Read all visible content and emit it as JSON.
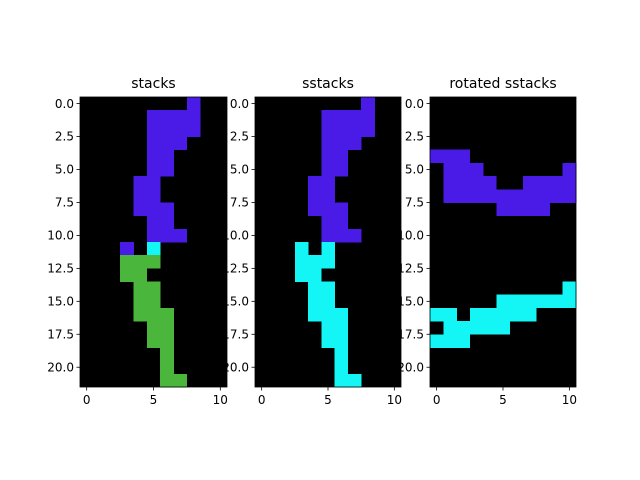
{
  "colors": {
    "background": "#000000",
    "purple": "#4a1be6",
    "cyan": "#14f5f5",
    "green": "#4ab63c"
  },
  "chart_data": [
    {
      "type": "heatmap",
      "title": "stacks",
      "xlim": [
        -0.5,
        10.5
      ],
      "ylim": [
        21.5,
        -0.5
      ],
      "xticks": [
        0,
        5,
        10
      ],
      "yticks": [
        0.0,
        2.5,
        5.0,
        7.5,
        10.0,
        12.5,
        15.0,
        17.5,
        20.0
      ],
      "x_tick_labels": [
        "0",
        "5",
        "10"
      ],
      "y_tick_labels": [
        "0.0",
        "2.5",
        "5.0",
        "7.5",
        "10.0",
        "12.5",
        "15.0",
        "17.5",
        "20.0"
      ],
      "grid": false,
      "runs": [
        {
          "row": 0,
          "x0": 8,
          "x1": 8,
          "color": "purple"
        },
        {
          "row": 1,
          "x0": 5,
          "x1": 8,
          "color": "purple"
        },
        {
          "row": 2,
          "x0": 5,
          "x1": 8,
          "color": "purple"
        },
        {
          "row": 3,
          "x0": 5,
          "x1": 7,
          "color": "purple"
        },
        {
          "row": 4,
          "x0": 5,
          "x1": 6,
          "color": "purple"
        },
        {
          "row": 5,
          "x0": 5,
          "x1": 6,
          "color": "purple"
        },
        {
          "row": 6,
          "x0": 4,
          "x1": 5,
          "color": "purple"
        },
        {
          "row": 7,
          "x0": 4,
          "x1": 5,
          "color": "purple"
        },
        {
          "row": 8,
          "x0": 4,
          "x1": 6,
          "color": "purple"
        },
        {
          "row": 9,
          "x0": 5,
          "x1": 6,
          "color": "purple"
        },
        {
          "row": 10,
          "x0": 5,
          "x1": 7,
          "color": "purple"
        },
        {
          "row": 11,
          "x0": 3,
          "x1": 3,
          "color": "purple"
        },
        {
          "row": 11,
          "x0": 5,
          "x1": 5,
          "color": "cyan"
        },
        {
          "row": 12,
          "x0": 3,
          "x1": 5,
          "color": "green"
        },
        {
          "row": 13,
          "x0": 3,
          "x1": 4,
          "color": "green"
        },
        {
          "row": 14,
          "x0": 4,
          "x1": 5,
          "color": "green"
        },
        {
          "row": 15,
          "x0": 4,
          "x1": 5,
          "color": "green"
        },
        {
          "row": 16,
          "x0": 4,
          "x1": 6,
          "color": "green"
        },
        {
          "row": 17,
          "x0": 5,
          "x1": 6,
          "color": "green"
        },
        {
          "row": 18,
          "x0": 5,
          "x1": 6,
          "color": "green"
        },
        {
          "row": 19,
          "x0": 6,
          "x1": 6,
          "color": "green"
        },
        {
          "row": 20,
          "x0": 6,
          "x1": 6,
          "color": "green"
        },
        {
          "row": 21,
          "x0": 6,
          "x1": 7,
          "color": "green"
        }
      ]
    },
    {
      "type": "heatmap",
      "title": "sstacks",
      "xlim": [
        -0.5,
        10.5
      ],
      "ylim": [
        21.5,
        -0.5
      ],
      "xticks": [
        0,
        5,
        10
      ],
      "yticks": [
        0.0,
        2.5,
        5.0,
        7.5,
        10.0,
        12.5,
        15.0,
        17.5,
        20.0
      ],
      "x_tick_labels": [
        "0",
        "5",
        "10"
      ],
      "y_tick_labels": [
        "0.0",
        "2.5",
        "5.0",
        "7.5",
        "10.0",
        "12.5",
        "15.0",
        "17.5",
        "20.0"
      ],
      "grid": false,
      "runs": [
        {
          "row": 0,
          "x0": 8,
          "x1": 8,
          "color": "purple"
        },
        {
          "row": 1,
          "x0": 5,
          "x1": 8,
          "color": "purple"
        },
        {
          "row": 2,
          "x0": 5,
          "x1": 8,
          "color": "purple"
        },
        {
          "row": 3,
          "x0": 5,
          "x1": 7,
          "color": "purple"
        },
        {
          "row": 4,
          "x0": 5,
          "x1": 6,
          "color": "purple"
        },
        {
          "row": 5,
          "x0": 5,
          "x1": 6,
          "color": "purple"
        },
        {
          "row": 6,
          "x0": 4,
          "x1": 5,
          "color": "purple"
        },
        {
          "row": 7,
          "x0": 4,
          "x1": 5,
          "color": "purple"
        },
        {
          "row": 8,
          "x0": 4,
          "x1": 6,
          "color": "purple"
        },
        {
          "row": 9,
          "x0": 5,
          "x1": 6,
          "color": "purple"
        },
        {
          "row": 10,
          "x0": 5,
          "x1": 7,
          "color": "purple"
        },
        {
          "row": 11,
          "x0": 3,
          "x1": 3,
          "color": "cyan"
        },
        {
          "row": 11,
          "x0": 5,
          "x1": 5,
          "color": "cyan"
        },
        {
          "row": 12,
          "x0": 3,
          "x1": 5,
          "color": "cyan"
        },
        {
          "row": 13,
          "x0": 3,
          "x1": 4,
          "color": "cyan"
        },
        {
          "row": 14,
          "x0": 4,
          "x1": 5,
          "color": "cyan"
        },
        {
          "row": 15,
          "x0": 4,
          "x1": 5,
          "color": "cyan"
        },
        {
          "row": 16,
          "x0": 4,
          "x1": 6,
          "color": "cyan"
        },
        {
          "row": 17,
          "x0": 5,
          "x1": 6,
          "color": "cyan"
        },
        {
          "row": 18,
          "x0": 5,
          "x1": 6,
          "color": "cyan"
        },
        {
          "row": 19,
          "x0": 6,
          "x1": 6,
          "color": "cyan"
        },
        {
          "row": 20,
          "x0": 6,
          "x1": 6,
          "color": "cyan"
        },
        {
          "row": 21,
          "x0": 6,
          "x1": 7,
          "color": "cyan"
        }
      ]
    },
    {
      "type": "heatmap",
      "title": "rotated sstacks",
      "xlim": [
        -0.5,
        10.5
      ],
      "ylim": [
        21.5,
        -0.5
      ],
      "xticks": [
        0,
        5,
        10
      ],
      "yticks": [
        0.0,
        2.5,
        5.0,
        7.5,
        10.0,
        12.5,
        15.0,
        17.5,
        20.0
      ],
      "x_tick_labels": [
        "0",
        "5",
        "10"
      ],
      "y_tick_labels": [
        "0.0",
        "2.5",
        "5.0",
        "7.5",
        "10.0",
        "12.5",
        "15.0",
        "17.5",
        "20.0"
      ],
      "grid": false,
      "runs": [
        {
          "row": 4,
          "x0": 0,
          "x1": 2,
          "color": "purple"
        },
        {
          "row": 5,
          "x0": 1,
          "x1": 3,
          "color": "purple"
        },
        {
          "row": 5,
          "x0": 10,
          "x1": 10,
          "color": "purple"
        },
        {
          "row": 6,
          "x0": 1,
          "x1": 4,
          "color": "purple"
        },
        {
          "row": 6,
          "x0": 7,
          "x1": 10,
          "color": "purple"
        },
        {
          "row": 7,
          "x0": 1,
          "x1": 10,
          "color": "purple"
        },
        {
          "row": 8,
          "x0": 5,
          "x1": 8,
          "color": "purple"
        },
        {
          "row": 14,
          "x0": 10,
          "x1": 10,
          "color": "cyan"
        },
        {
          "row": 15,
          "x0": 5,
          "x1": 10,
          "color": "cyan"
        },
        {
          "row": 16,
          "x0": 0,
          "x1": 1,
          "color": "cyan"
        },
        {
          "row": 16,
          "x0": 3,
          "x1": 7,
          "color": "cyan"
        },
        {
          "row": 17,
          "x0": 1,
          "x1": 5,
          "color": "cyan"
        },
        {
          "row": 18,
          "x0": 0,
          "x1": 2,
          "color": "cyan"
        }
      ]
    }
  ]
}
